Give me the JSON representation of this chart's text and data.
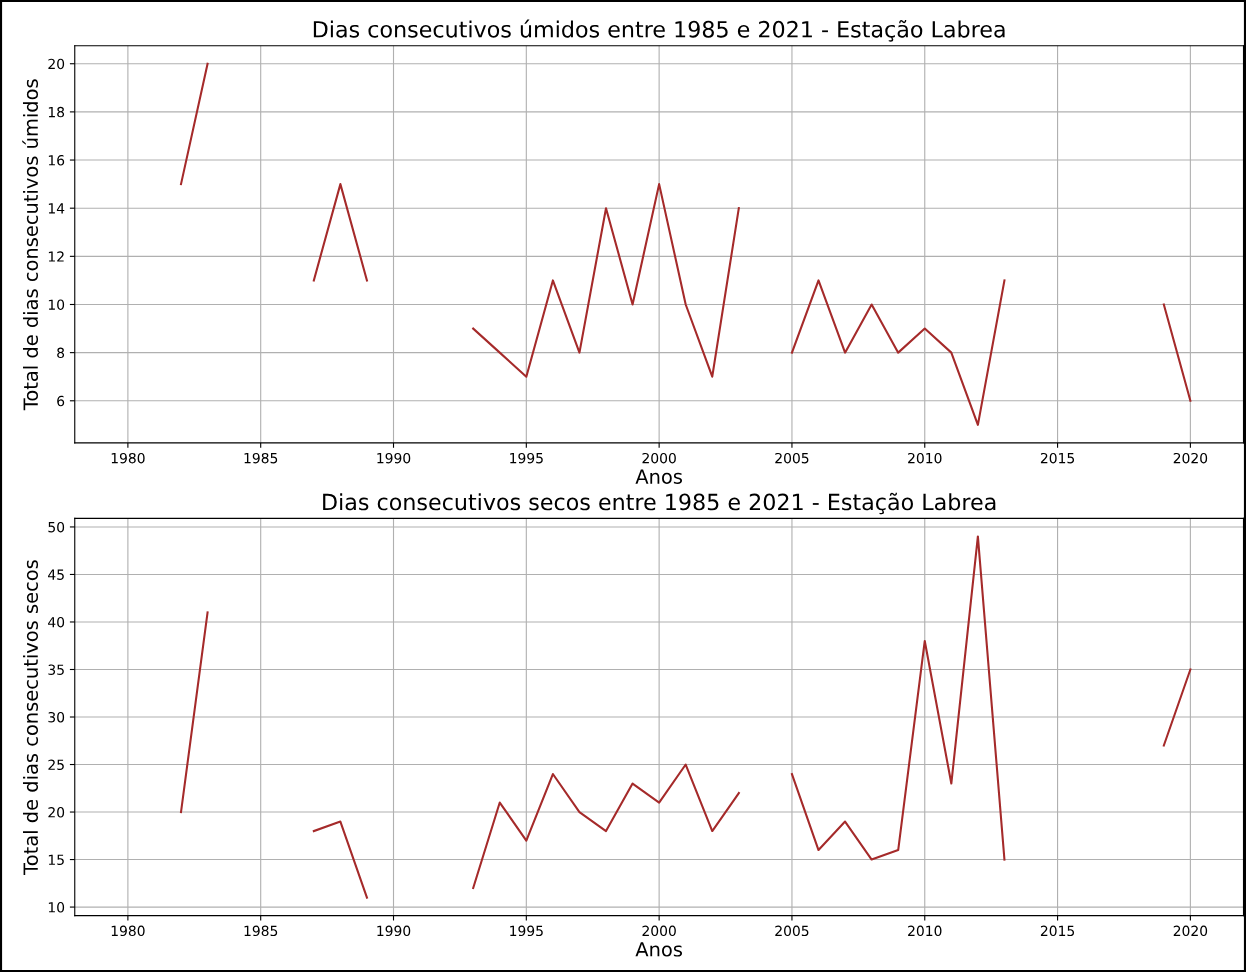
{
  "chart_data": [
    {
      "type": "line",
      "title": "Dias consecutivos úmidos entre 1985 e 2021 - Estação Labrea",
      "xlabel": "Anos",
      "ylabel": "Total de dias consecutivos úmidos",
      "x": [
        1982,
        1983,
        1984,
        1985,
        1986,
        1987,
        1988,
        1989,
        1990,
        1991,
        1992,
        1993,
        1994,
        1995,
        1996,
        1997,
        1998,
        1999,
        2000,
        2001,
        2002,
        2003,
        2004,
        2005,
        2006,
        2007,
        2008,
        2009,
        2010,
        2011,
        2012,
        2013,
        2014,
        2015,
        2016,
        2017,
        2018,
        2019,
        2020
      ],
      "series": [
        {
          "color": "#a52a2a",
          "values": [
            15,
            20,
            null,
            null,
            null,
            11,
            15,
            11,
            null,
            null,
            null,
            9,
            8,
            7,
            11,
            8,
            14,
            10,
            15,
            10,
            7,
            14,
            null,
            8,
            11,
            8,
            10,
            8,
            9,
            8,
            5,
            11,
            null,
            null,
            null,
            null,
            null,
            10,
            6
          ]
        }
      ],
      "xlim": [
        1978,
        2022
      ],
      "xticks": [
        1980,
        1985,
        1990,
        1995,
        2000,
        2005,
        2010,
        2015,
        2020
      ],
      "ylim": [
        4.25,
        20.75
      ],
      "yticks": [
        6,
        8,
        10,
        12,
        14,
        16,
        18,
        20
      ],
      "grid": true,
      "marker": "none",
      "line_style": "solid"
    },
    {
      "type": "line",
      "title": "Dias consecutivos secos entre 1985 e 2021 - Estação Labrea",
      "xlabel": "Anos",
      "ylabel": "Total de dias consecutivos secos",
      "x": [
        1982,
        1983,
        1984,
        1985,
        1986,
        1987,
        1988,
        1989,
        1990,
        1991,
        1992,
        1993,
        1994,
        1995,
        1996,
        1997,
        1998,
        1999,
        2000,
        2001,
        2002,
        2003,
        2004,
        2005,
        2006,
        2007,
        2008,
        2009,
        2010,
        2011,
        2012,
        2013,
        2014,
        2015,
        2016,
        2017,
        2018,
        2019,
        2020
      ],
      "series": [
        {
          "color": "#a52a2a",
          "values": [
            20,
            41,
            null,
            null,
            null,
            18,
            19,
            11,
            null,
            null,
            null,
            12,
            21,
            17,
            24,
            20,
            18,
            23,
            21,
            25,
            18,
            22,
            null,
            24,
            16,
            19,
            15,
            16,
            38,
            23,
            49,
            15,
            null,
            null,
            null,
            null,
            null,
            27,
            35
          ]
        }
      ],
      "xlim": [
        1978,
        2022
      ],
      "xticks": [
        1980,
        1985,
        1990,
        1995,
        2000,
        2005,
        2010,
        2015,
        2020
      ],
      "ylim": [
        9.1,
        50.9
      ],
      "yticks": [
        10,
        15,
        20,
        25,
        30,
        35,
        40,
        45,
        50
      ],
      "grid": true,
      "marker": "none",
      "line_style": "solid"
    }
  ]
}
